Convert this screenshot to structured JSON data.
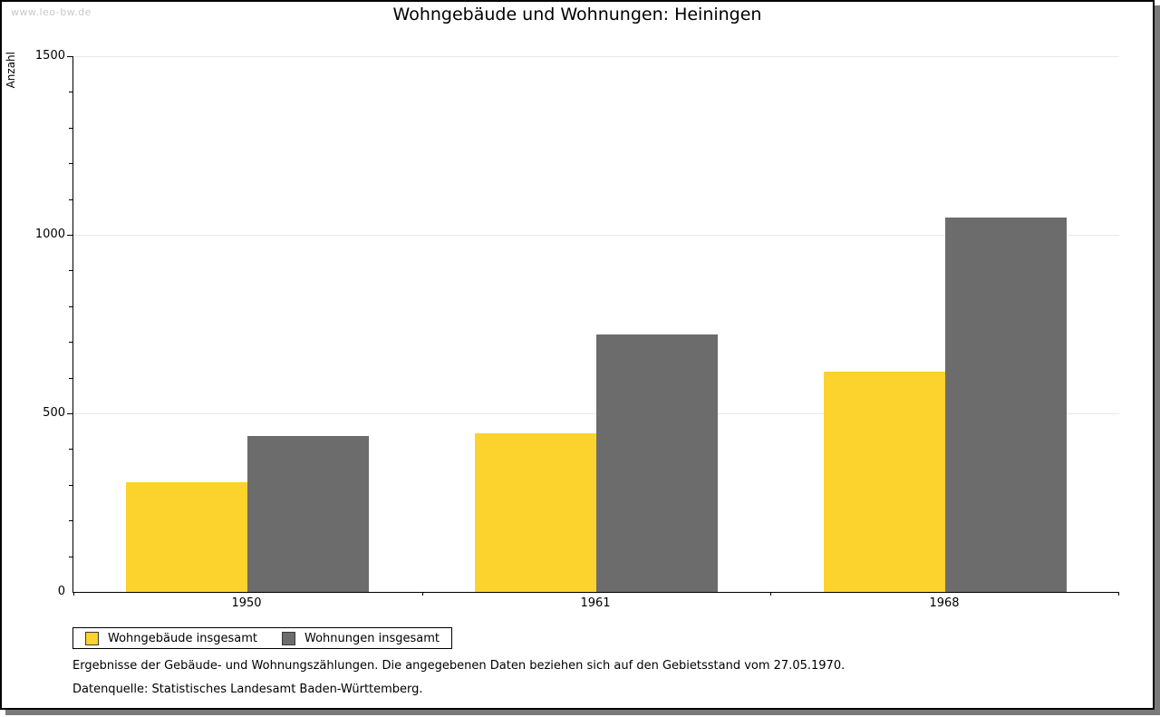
{
  "watermark": "www.leo-bw.de",
  "title": "Wohngebäude und Wohnungen: Heiningen",
  "chart_data": {
    "type": "bar",
    "title": "Wohngebäude und Wohnungen: Heiningen",
    "xlabel": "",
    "ylabel": "Anzahl",
    "categories": [
      "1950",
      "1961",
      "1968"
    ],
    "series": [
      {
        "name": "Wohngebäude insgesamt",
        "color": "#fcd32c",
        "values": [
          308,
          444,
          618
        ]
      },
      {
        "name": "Wohnungen insgesamt",
        "color": "#6c6c6c",
        "values": [
          437,
          721,
          1048
        ]
      }
    ],
    "ylim": [
      0,
      1500
    ],
    "ytick_interval": 500,
    "minor_tick_interval": 100,
    "grid": "horizontal",
    "legend_position": "bottom-left"
  },
  "footer": {
    "line1": "Ergebnisse der Gebäude- und Wohnungszählungen. Die angegebenen Daten beziehen sich auf den Gebietsstand vom 27.05.1970.",
    "line2": "Datenquelle: Statistisches Landesamt Baden-Württemberg."
  },
  "colors": {
    "bar_yellow": "#fcd32c",
    "bar_gray": "#6c6c6c",
    "gridline": "#e8e8e8",
    "watermark_text": "#c9c9c9",
    "frame_shadow": "#7a7a7a"
  }
}
